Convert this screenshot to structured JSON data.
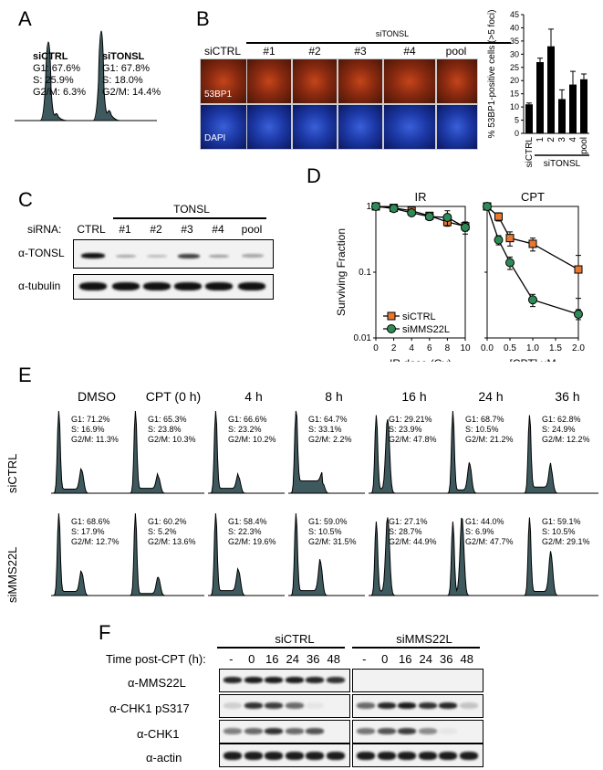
{
  "panelA": {
    "letter": "A",
    "ctrl": {
      "name": "siCTRL",
      "g1": "G1: 67.6%",
      "s": "S: 25.9%",
      "g2m": "G2/M: 6.3%"
    },
    "tonsl": {
      "name": "siTONSL",
      "g1": "G1: 67.8%",
      "s": "S: 18.0%",
      "g2m": "G2/M: 14.4%"
    }
  },
  "panelB": {
    "letter": "B",
    "group_label": "siTONSL",
    "columns": [
      "siCTRL",
      "#1",
      "#2",
      "#3",
      "#4",
      "pool"
    ],
    "row_labels": [
      "53BP1",
      "DAPI"
    ]
  },
  "chart_data": [
    {
      "type": "bar",
      "categories": [
        "siCTRL",
        "1",
        "2",
        "3",
        "4",
        "pool"
      ],
      "values": [
        11,
        27,
        33,
        13,
        18.5,
        20.5
      ],
      "errors": [
        0.5,
        1.5,
        6.5,
        3.5,
        5,
        2
      ],
      "ylabel": "% 53BP1-positive cells (>5 foci)",
      "group_label": "siTONSL",
      "ylim": [
        0,
        45
      ],
      "yticks": [
        "0",
        "5",
        "10",
        "15",
        "20",
        "25",
        "30",
        "35",
        "40",
        "45"
      ]
    },
    {
      "type": "line",
      "title": "IR",
      "xlabel": "IR dose (Gy)",
      "ylabel": "Surviving Fraction",
      "yscale": "log",
      "ylim": [
        0.01,
        1
      ],
      "yticks": [
        "0.01",
        "0.1",
        "1"
      ],
      "xlim": [
        0,
        10
      ],
      "xticks": [
        "0",
        "2",
        "4",
        "6",
        "8",
        "10"
      ],
      "series": [
        {
          "name": "siCTRL",
          "color": "#e87830",
          "marker": "square",
          "x": [
            0,
            2,
            4,
            6,
            8,
            10
          ],
          "y": [
            1.0,
            0.95,
            0.86,
            0.72,
            0.58,
            0.5
          ],
          "err": [
            0.03,
            0.04,
            0.05,
            0.06,
            0.07,
            0.08
          ]
        },
        {
          "name": "siMMS22L",
          "color": "#2e8b57",
          "marker": "circle",
          "x": [
            0,
            2,
            4,
            6,
            8,
            10
          ],
          "y": [
            1.0,
            0.93,
            0.8,
            0.7,
            0.68,
            0.48
          ],
          "err": [
            0.03,
            0.05,
            0.06,
            0.08,
            0.18,
            0.1
          ]
        }
      ]
    },
    {
      "type": "line",
      "title": "CPT",
      "xlabel": "[CPT] μM",
      "yscale": "log",
      "ylim": [
        0.01,
        1
      ],
      "xlim": [
        0,
        2
      ],
      "xticks": [
        "0.0",
        "0.5",
        "1.0",
        "1.5",
        "2.0"
      ],
      "series": [
        {
          "name": "siCTRL",
          "color": "#e87830",
          "marker": "square",
          "x": [
            0,
            0.25,
            0.5,
            1.0,
            2.0
          ],
          "y": [
            1.0,
            0.7,
            0.33,
            0.27,
            0.11
          ],
          "err": [
            0.05,
            0.1,
            0.08,
            0.06,
            0.07
          ]
        },
        {
          "name": "siMMS22L",
          "color": "#2e8b57",
          "marker": "circle",
          "x": [
            0,
            0.25,
            0.5,
            1.0,
            2.0
          ],
          "y": [
            1.0,
            0.31,
            0.14,
            0.038,
            0.023
          ],
          "err": [
            0.05,
            0.05,
            0.03,
            0.008,
            0.004
          ]
        }
      ]
    }
  ],
  "panelC": {
    "letter": "C",
    "group_label": "TONSL",
    "sirna_label": "siRNA:",
    "lanes": [
      "CTRL",
      "#1",
      "#2",
      "#3",
      "#4",
      "pool"
    ],
    "rows": [
      "α-TONSL",
      "α-tubulin"
    ]
  },
  "panelD": {
    "letter": "D"
  },
  "panelE": {
    "letter": "E",
    "row_labels": [
      "siCTRL",
      "siMMS22L"
    ],
    "timepoints": [
      "DMSO",
      "CPT (0 h)",
      "4 h",
      "8 h",
      "16 h",
      "24 h",
      "36 h"
    ],
    "ctrl": [
      [
        "G1: 71.2%",
        "S: 16.9%",
        "G2/M: 11.3%"
      ],
      [
        "G1: 65.3%",
        "S: 23.8%",
        "G2/M: 10.3%"
      ],
      [
        "G1: 66.6%",
        "S: 23.2%",
        "G2/M: 10.2%"
      ],
      [
        "G1: 64.7%",
        "S: 33.1%",
        "G2/M: 2.2%"
      ],
      [
        "G1: 29.21%",
        "S: 23.9%",
        "G2/M: 47.8%"
      ],
      [
        "G1: 68.7%",
        "S: 10.5%",
        "G2/M: 21.2%"
      ],
      [
        "G1: 62.8%",
        "S: 24.9%",
        "G2/M: 12.2%"
      ]
    ],
    "mms": [
      [
        "G1: 68.6%",
        "S: 17.9%",
        "G2/M: 12.7%"
      ],
      [
        "G1: 60.2%",
        "S: 5.2%",
        "G2/M: 13.6%"
      ],
      [
        "G1: 58.4%",
        "S: 22.3%",
        "G2/M: 19.6%"
      ],
      [
        "G1: 59.0%",
        "S: 10.5%",
        "G2/M: 31.5%"
      ],
      [
        "G1: 27.1%",
        "S: 28.7%",
        "G2/M: 44.9%"
      ],
      [
        "G1: 44.0%",
        "S: 6.9%",
        "G2/M: 47.7%"
      ],
      [
        "G1: 59.1%",
        "S: 10.5%",
        "G2/M: 29.1%"
      ]
    ]
  },
  "panelF": {
    "letter": "F",
    "group1": "siCTRL",
    "group2": "siMMS22L",
    "time_label": "Time post-CPT (h):",
    "lanes": [
      "-",
      "0",
      "16",
      "24",
      "36",
      "48"
    ],
    "rows": [
      "α-MMS22L",
      "α-CHK1 pS317",
      "α-CHK1",
      "α-actin"
    ]
  }
}
